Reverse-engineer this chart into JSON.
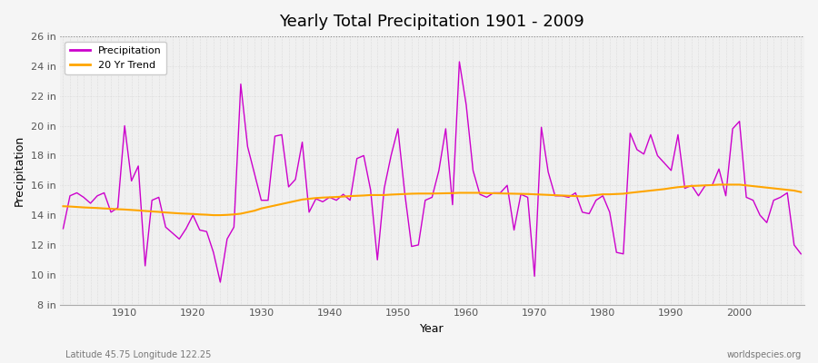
{
  "title": "Yearly Total Precipitation 1901 - 2009",
  "xlabel": "Year",
  "ylabel": "Precipitation",
  "subtitle_left": "Latitude 45.75 Longitude 122.25",
  "subtitle_right": "worldspecies.org",
  "ylim": [
    8,
    26
  ],
  "ytick_labels": [
    "8 in",
    "10 in",
    "12 in",
    "14 in",
    "16 in",
    "18 in",
    "20 in",
    "22 in",
    "24 in",
    "26 in"
  ],
  "ytick_values": [
    8,
    10,
    12,
    14,
    16,
    18,
    20,
    22,
    24,
    26
  ],
  "years": [
    1901,
    1902,
    1903,
    1904,
    1905,
    1906,
    1907,
    1908,
    1909,
    1910,
    1911,
    1912,
    1913,
    1914,
    1915,
    1916,
    1917,
    1918,
    1919,
    1920,
    1921,
    1922,
    1923,
    1924,
    1925,
    1926,
    1927,
    1928,
    1929,
    1930,
    1931,
    1932,
    1933,
    1934,
    1935,
    1936,
    1937,
    1938,
    1939,
    1940,
    1941,
    1942,
    1943,
    1944,
    1945,
    1946,
    1947,
    1948,
    1949,
    1950,
    1951,
    1952,
    1953,
    1954,
    1955,
    1956,
    1957,
    1958,
    1959,
    1960,
    1961,
    1962,
    1963,
    1964,
    1965,
    1966,
    1967,
    1968,
    1969,
    1970,
    1971,
    1972,
    1973,
    1974,
    1975,
    1976,
    1977,
    1978,
    1979,
    1980,
    1981,
    1982,
    1983,
    1984,
    1985,
    1986,
    1987,
    1988,
    1989,
    1990,
    1991,
    1992,
    1993,
    1994,
    1995,
    1996,
    1997,
    1998,
    1999,
    2000,
    2001,
    2002,
    2003,
    2004,
    2005,
    2006,
    2007,
    2008,
    2009
  ],
  "precip": [
    13.1,
    15.3,
    15.5,
    15.2,
    14.8,
    15.3,
    15.5,
    14.2,
    14.5,
    20.0,
    16.3,
    17.3,
    10.6,
    15.0,
    15.2,
    13.2,
    12.8,
    12.4,
    13.1,
    14.0,
    13.0,
    12.9,
    11.5,
    9.5,
    12.4,
    13.2,
    22.8,
    18.6,
    16.8,
    15.0,
    15.0,
    19.3,
    19.4,
    15.9,
    16.4,
    18.9,
    14.2,
    15.1,
    14.9,
    15.2,
    15.0,
    15.4,
    15.0,
    17.8,
    18.0,
    15.7,
    11.0,
    15.8,
    18.0,
    19.8,
    15.5,
    11.9,
    12.0,
    15.0,
    15.2,
    17.0,
    19.8,
    14.7,
    24.3,
    21.4,
    17.0,
    15.4,
    15.2,
    15.5,
    15.5,
    16.0,
    13.0,
    15.4,
    15.2,
    9.9,
    19.9,
    16.9,
    15.3,
    15.3,
    15.2,
    15.5,
    14.2,
    14.1,
    15.0,
    15.3,
    14.2,
    11.5,
    11.4,
    19.5,
    18.4,
    18.1,
    19.4,
    18.0,
    17.5,
    17.0,
    19.4,
    15.8,
    16.0,
    15.3,
    16.0,
    16.0,
    17.1,
    15.3,
    19.8,
    20.3,
    15.2,
    15.0,
    14.0,
    13.5,
    15.0,
    15.2,
    15.5,
    12.0,
    11.4
  ],
  "trend": [
    14.6,
    14.58,
    14.55,
    14.52,
    14.5,
    14.48,
    14.45,
    14.43,
    14.4,
    14.38,
    14.35,
    14.32,
    14.28,
    14.25,
    14.22,
    14.18,
    14.15,
    14.12,
    14.1,
    14.08,
    14.05,
    14.03,
    14.0,
    14.0,
    14.02,
    14.05,
    14.1,
    14.2,
    14.3,
    14.45,
    14.55,
    14.65,
    14.75,
    14.85,
    14.95,
    15.05,
    15.1,
    15.15,
    15.18,
    15.2,
    15.22,
    15.25,
    15.28,
    15.3,
    15.32,
    15.35,
    15.35,
    15.35,
    15.38,
    15.4,
    15.42,
    15.44,
    15.45,
    15.45,
    15.45,
    15.46,
    15.47,
    15.48,
    15.5,
    15.5,
    15.5,
    15.5,
    15.48,
    15.47,
    15.46,
    15.45,
    15.44,
    15.43,
    15.42,
    15.4,
    15.38,
    15.36,
    15.34,
    15.32,
    15.3,
    15.28,
    15.26,
    15.3,
    15.35,
    15.4,
    15.4,
    15.42,
    15.44,
    15.5,
    15.55,
    15.6,
    15.65,
    15.7,
    15.75,
    15.82,
    15.88,
    15.92,
    15.96,
    15.98,
    16.0,
    16.02,
    16.05,
    16.05,
    16.05,
    16.05,
    16.0,
    15.95,
    15.9,
    15.85,
    15.8,
    15.75,
    15.7,
    15.65,
    15.55
  ],
  "precip_color": "#cc00cc",
  "trend_color": "#FFA500",
  "bg_color": "#f5f5f5",
  "plot_bg_color": "#f0f0f0",
  "grid_color": "#d8d8d8",
  "top_dotted_color": "#aaaaaa",
  "legend_bg": "#ffffff"
}
